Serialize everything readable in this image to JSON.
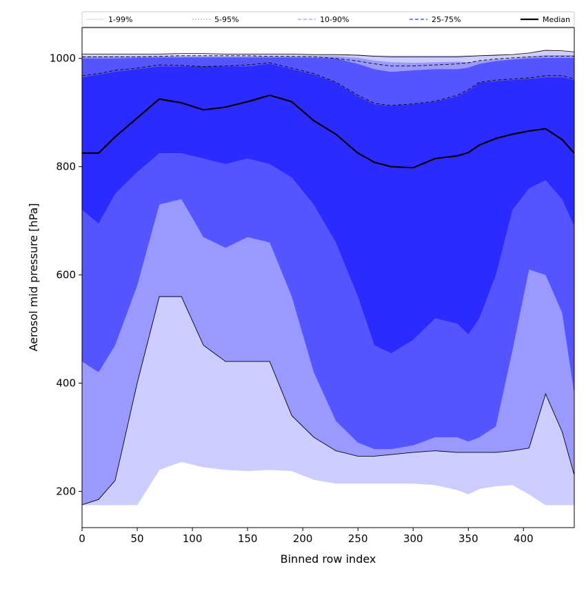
{
  "chart_data": {
    "type": "area",
    "xlabel": "Binned row index",
    "ylabel": "Aerosol mid pressure [hPa]",
    "xlim": [
      0,
      446
    ],
    "ylim": [
      133,
      1057
    ],
    "xticks": [
      0,
      50,
      100,
      150,
      200,
      250,
      300,
      350,
      400
    ],
    "yticks": [
      200,
      400,
      600,
      800,
      1000
    ],
    "legend_position": "top, spanning full width",
    "x": [
      0,
      15,
      30,
      50,
      70,
      90,
      110,
      130,
      150,
      170,
      190,
      210,
      230,
      250,
      265,
      280,
      300,
      320,
      340,
      350,
      360,
      375,
      390,
      405,
      420,
      435,
      446
    ],
    "bands": [
      {
        "name": "1-99%",
        "color": "#ccccff",
        "lower": [
          175,
          175,
          175,
          175,
          240,
          255,
          245,
          240,
          238,
          240,
          238,
          222,
          215,
          215,
          215,
          215,
          215,
          212,
          203,
          195,
          205,
          210,
          212,
          195,
          175,
          175,
          175
        ],
        "upper": [
          1006,
          1006,
          1006,
          1006,
          1006,
          1006,
          1006,
          1006,
          1006,
          1006,
          1006,
          1006,
          1006,
          1005,
          1005,
          1005,
          1005,
          1005,
          1005,
          1005,
          1005,
          1005,
          1005,
          1008,
          1013,
          1012,
          1010
        ]
      },
      {
        "name": "5-95%",
        "color": "#9999ff",
        "lower": [
          175,
          185,
          220,
          400,
          560,
          560,
          470,
          440,
          440,
          440,
          340,
          300,
          275,
          265,
          265,
          268,
          272,
          275,
          272,
          272,
          272,
          272,
          275,
          280,
          380,
          310,
          230
        ],
        "upper": [
          1004,
          1004,
          1004,
          1004,
          1004,
          1004,
          1004,
          1004,
          1004,
          1004,
          1004,
          1004,
          1004,
          1001,
          996,
          993,
          992,
          993,
          994,
          993,
          995,
          998,
          1000,
          1003,
          1006,
          1006,
          1006
        ]
      },
      {
        "name": "10-90%",
        "color": "#5555ff",
        "lower": [
          440,
          420,
          470,
          580,
          730,
          740,
          670,
          650,
          670,
          660,
          560,
          420,
          330,
          290,
          278,
          278,
          285,
          300,
          300,
          292,
          300,
          320,
          460,
          610,
          600,
          530,
          380
        ],
        "upper": [
          1000,
          1000,
          1000,
          1001,
          1002,
          1002,
          1002,
          1002,
          1002,
          1002,
          1002,
          1001,
          1000,
          990,
          980,
          975,
          978,
          980,
          980,
          983,
          990,
          995,
          998,
          1000,
          1001,
          1001,
          1001
        ]
      },
      {
        "name": "25-75%",
        "color": "#2b2bff",
        "lower": [
          720,
          695,
          750,
          790,
          825,
          825,
          815,
          805,
          815,
          805,
          780,
          730,
          660,
          560,
          470,
          455,
          480,
          520,
          510,
          490,
          520,
          600,
          720,
          760,
          775,
          740,
          690
        ],
        "upper": [
          965,
          970,
          975,
          980,
          985,
          985,
          985,
          985,
          985,
          990,
          980,
          970,
          955,
          930,
          915,
          912,
          915,
          920,
          930,
          940,
          955,
          958,
          960,
          962,
          965,
          965,
          960
        ]
      }
    ],
    "lines": [
      {
        "name": "1-99%",
        "color": "#ccccff",
        "style": "solid",
        "low": [
          175,
          175,
          175,
          175,
          240,
          255,
          245,
          240,
          238,
          240,
          238,
          222,
          215,
          215,
          215,
          215,
          215,
          212,
          203,
          195,
          205,
          210,
          212,
          195,
          175,
          175,
          175
        ],
        "high": [
          1006,
          1006,
          1006,
          1006,
          1006,
          1006,
          1006,
          1006,
          1006,
          1006,
          1006,
          1006,
          1006,
          1005,
          1005,
          1005,
          1005,
          1005,
          1005,
          1005,
          1005,
          1005,
          1005,
          1008,
          1013,
          1012,
          1010
        ]
      },
      {
        "name": "5-95%",
        "color": "#000000",
        "style": "solid",
        "low": [
          175,
          185,
          220,
          400,
          560,
          560,
          470,
          440,
          440,
          440,
          340,
          300,
          275,
          265,
          265,
          268,
          272,
          275,
          272,
          272,
          272,
          272,
          275,
          280,
          380,
          310,
          230
        ],
        "high": [
          1008,
          1008,
          1008,
          1008,
          1008,
          1009,
          1009,
          1008,
          1008,
          1008,
          1008,
          1007,
          1007,
          1006,
          1004,
          1003,
          1003,
          1003,
          1003,
          1004,
          1005,
          1006,
          1007,
          1010,
          1015,
          1014,
          1012
        ]
      },
      {
        "name": "10-90%",
        "color": "#000000",
        "style": "dashed",
        "high": [
          1003,
          1003,
          1003,
          1003,
          1004,
          1005,
          1005,
          1005,
          1005,
          1004,
          1004,
          1003,
          1000,
          995,
          990,
          986,
          986,
          988,
          990,
          992,
          996,
          999,
          1001,
          1003,
          1004,
          1004,
          1004
        ]
      },
      {
        "name": "25-75%",
        "color": "#000000",
        "style": "dashed",
        "high": [
          968,
          972,
          978,
          982,
          988,
          987,
          985,
          986,
          988,
          992,
          982,
          972,
          956,
          932,
          917,
          913,
          916,
          921,
          932,
          942,
          956,
          960,
          962,
          964,
          968,
          968,
          962
        ]
      }
    ],
    "median": {
      "name": "Median",
      "color": "#000000",
      "values": [
        825,
        825,
        855,
        890,
        925,
        918,
        905,
        910,
        920,
        932,
        920,
        885,
        860,
        825,
        808,
        800,
        798,
        815,
        820,
        826,
        840,
        852,
        860,
        866,
        870,
        850,
        825
      ]
    },
    "legend": [
      "1-99%",
      "5-95%",
      "10-90%",
      "25-75%",
      "Median"
    ],
    "grid": false
  }
}
